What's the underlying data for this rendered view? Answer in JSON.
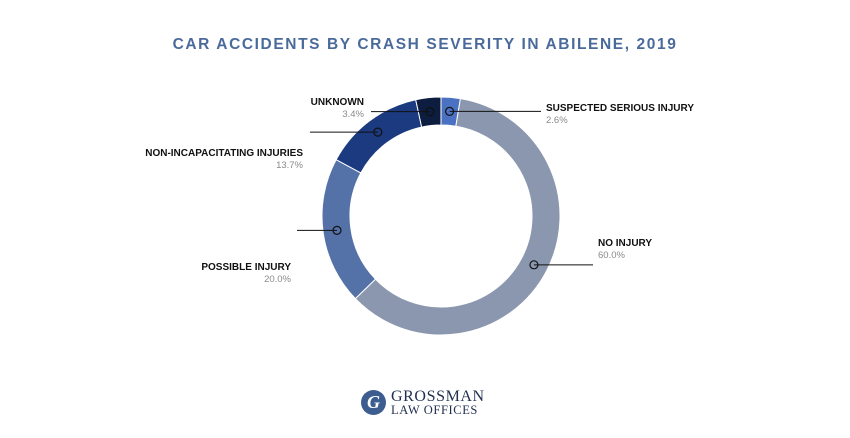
{
  "chart_data": {
    "type": "pie",
    "title": "CAR ACCIDENTS BY CRASH SEVERITY IN ABILENE, 2019",
    "donut": true,
    "categories": [
      "Suspected Serious Injury",
      "No Injury",
      "Possible Injury",
      "Non-Incapacitating Injuries",
      "Unknown"
    ],
    "slices": [
      {
        "label": "SUSPECTED SERIOUS INJURY",
        "value": 2.6,
        "value_label": "2.6%",
        "color": "#4b72c2",
        "side": "right"
      },
      {
        "label": "NO INJURY",
        "value": 60.0,
        "value_label": "60.0%",
        "color": "#8b97ae",
        "side": "right"
      },
      {
        "label": "POSSIBLE INJURY",
        "value": 20.0,
        "value_label": "20.0%",
        "color": "#5472a8",
        "side": "left"
      },
      {
        "label": "NON-INCAPACITATING INJURIES",
        "value": 13.7,
        "value_label": "13.7%",
        "color": "#1b3a80",
        "side": "left"
      },
      {
        "label": "UNKNOWN",
        "value": 3.4,
        "value_label": "3.4%",
        "color": "#0c1d40",
        "side": "left"
      }
    ],
    "legend": "none"
  },
  "logo": {
    "mark": "G",
    "line1": "GROSSMAN",
    "line2": "LAW OFFICES"
  }
}
